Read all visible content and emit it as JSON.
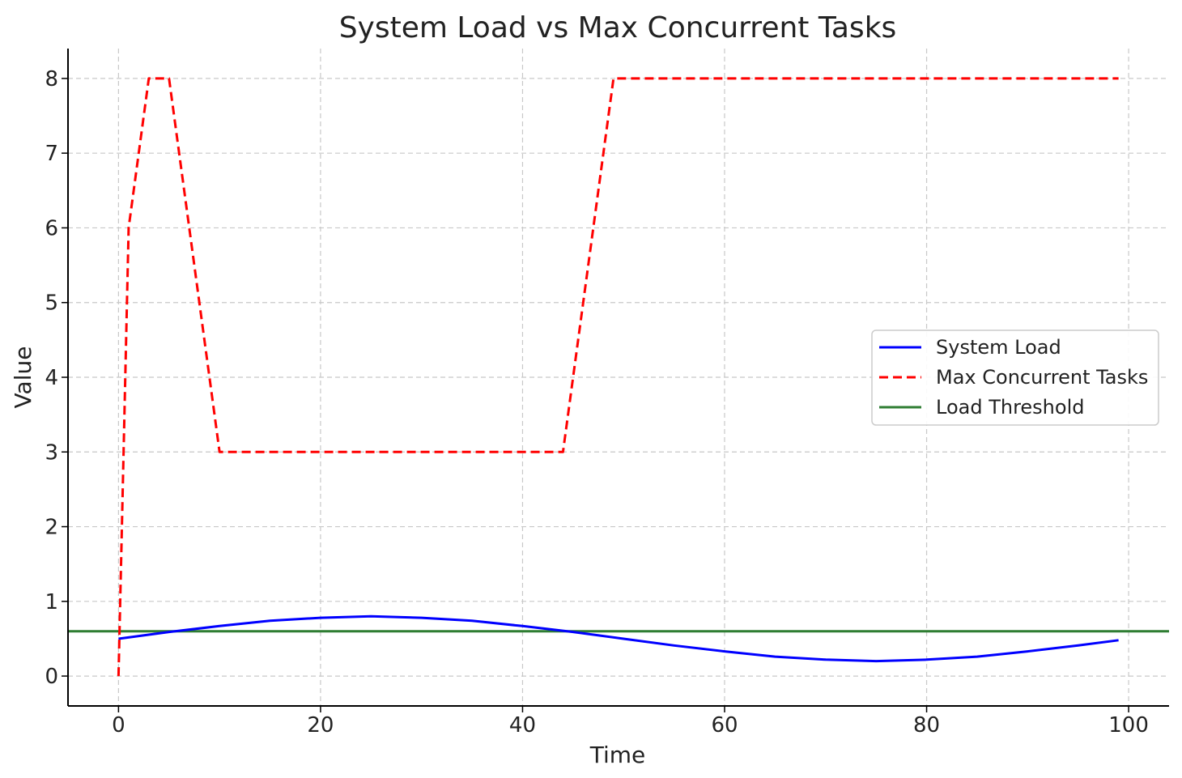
{
  "chart_data": {
    "type": "line",
    "title": "System Load vs Max Concurrent Tasks",
    "xlabel": "Time",
    "ylabel": "Value",
    "xlim": [
      -5,
      104
    ],
    "ylim": [
      -0.4,
      8.4
    ],
    "xticks": [
      0,
      20,
      40,
      60,
      80,
      100
    ],
    "yticks": [
      0,
      1,
      2,
      3,
      4,
      5,
      6,
      7,
      8
    ],
    "grid": true,
    "legend_position": "center-right",
    "series": [
      {
        "name": "System Load",
        "style": "solid",
        "color": "#0000ff",
        "x": [
          0,
          5,
          10,
          15,
          20,
          25,
          30,
          35,
          40,
          45,
          50,
          55,
          60,
          65,
          70,
          75,
          80,
          85,
          90,
          95,
          99
        ],
        "y": [
          0.5,
          0.59,
          0.67,
          0.74,
          0.78,
          0.8,
          0.78,
          0.74,
          0.67,
          0.59,
          0.5,
          0.41,
          0.33,
          0.26,
          0.22,
          0.2,
          0.22,
          0.26,
          0.33,
          0.41,
          0.48
        ]
      },
      {
        "name": "Max Concurrent Tasks",
        "style": "dashed",
        "color": "#ff0000",
        "x": [
          0,
          1,
          3,
          5,
          10,
          44,
          49,
          99
        ],
        "y": [
          0,
          6,
          8,
          8,
          3,
          3,
          8,
          8
        ]
      },
      {
        "name": "Load Threshold",
        "style": "solid",
        "color": "#2e7d32",
        "x": [
          -5,
          104
        ],
        "y": [
          0.6,
          0.6
        ]
      }
    ]
  }
}
